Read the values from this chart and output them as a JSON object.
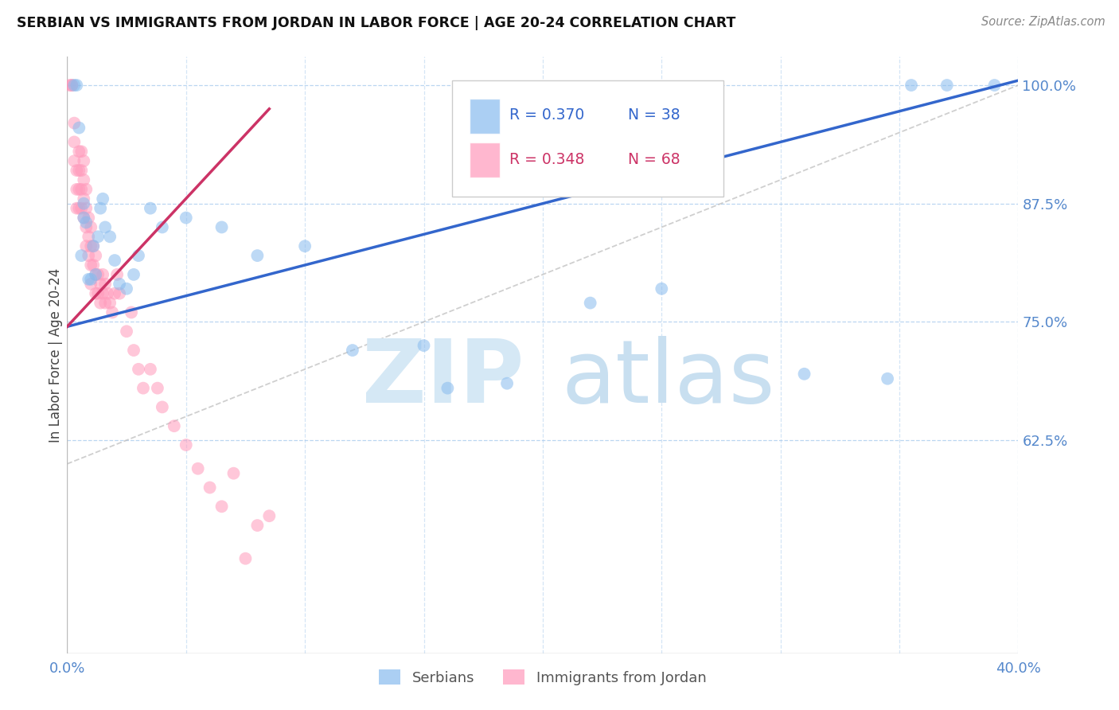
{
  "title": "SERBIAN VS IMMIGRANTS FROM JORDAN IN LABOR FORCE | AGE 20-24 CORRELATION CHART",
  "source": "Source: ZipAtlas.com",
  "ylabel": "In Labor Force | Age 20-24",
  "xlim": [
    0.0,
    0.4
  ],
  "ylim": [
    0.4,
    1.03
  ],
  "blue_color": "#88BBEE",
  "pink_color": "#FF99BB",
  "trend_blue": "#3366CC",
  "trend_pink": "#CC3366",
  "blue_scatter_x": [
    0.003,
    0.004,
    0.005,
    0.006,
    0.007,
    0.007,
    0.008,
    0.009,
    0.01,
    0.011,
    0.012,
    0.013,
    0.014,
    0.015,
    0.016,
    0.018,
    0.02,
    0.022,
    0.025,
    0.028,
    0.03,
    0.035,
    0.04,
    0.05,
    0.065,
    0.08,
    0.1,
    0.12,
    0.15,
    0.16,
    0.185,
    0.22,
    0.25,
    0.31,
    0.345,
    0.355,
    0.37,
    0.39
  ],
  "blue_scatter_y": [
    1.0,
    1.0,
    0.955,
    0.82,
    0.86,
    0.875,
    0.855,
    0.795,
    0.795,
    0.83,
    0.8,
    0.84,
    0.87,
    0.88,
    0.85,
    0.84,
    0.815,
    0.79,
    0.785,
    0.8,
    0.82,
    0.87,
    0.85,
    0.86,
    0.85,
    0.82,
    0.83,
    0.72,
    0.725,
    0.68,
    0.685,
    0.77,
    0.785,
    0.695,
    0.69,
    1.0,
    1.0,
    1.0
  ],
  "pink_scatter_x": [
    0.001,
    0.002,
    0.002,
    0.003,
    0.003,
    0.003,
    0.004,
    0.004,
    0.004,
    0.005,
    0.005,
    0.005,
    0.005,
    0.006,
    0.006,
    0.006,
    0.006,
    0.007,
    0.007,
    0.007,
    0.007,
    0.008,
    0.008,
    0.008,
    0.008,
    0.009,
    0.009,
    0.009,
    0.01,
    0.01,
    0.01,
    0.01,
    0.011,
    0.011,
    0.012,
    0.012,
    0.012,
    0.013,
    0.013,
    0.014,
    0.014,
    0.015,
    0.015,
    0.016,
    0.016,
    0.017,
    0.018,
    0.019,
    0.02,
    0.021,
    0.022,
    0.025,
    0.027,
    0.028,
    0.03,
    0.032,
    0.035,
    0.038,
    0.04,
    0.045,
    0.05,
    0.055,
    0.06,
    0.065,
    0.07,
    0.075,
    0.08,
    0.085
  ],
  "pink_scatter_y": [
    1.0,
    1.0,
    1.0,
    0.96,
    0.94,
    0.92,
    0.91,
    0.89,
    0.87,
    0.93,
    0.91,
    0.89,
    0.87,
    0.93,
    0.91,
    0.89,
    0.87,
    0.92,
    0.9,
    0.88,
    0.86,
    0.89,
    0.87,
    0.85,
    0.83,
    0.86,
    0.84,
    0.82,
    0.85,
    0.83,
    0.81,
    0.79,
    0.83,
    0.81,
    0.82,
    0.8,
    0.78,
    0.8,
    0.78,
    0.79,
    0.77,
    0.8,
    0.78,
    0.79,
    0.77,
    0.78,
    0.77,
    0.76,
    0.78,
    0.8,
    0.78,
    0.74,
    0.76,
    0.72,
    0.7,
    0.68,
    0.7,
    0.68,
    0.66,
    0.64,
    0.62,
    0.595,
    0.575,
    0.555,
    0.59,
    0.5,
    0.535,
    0.545
  ]
}
